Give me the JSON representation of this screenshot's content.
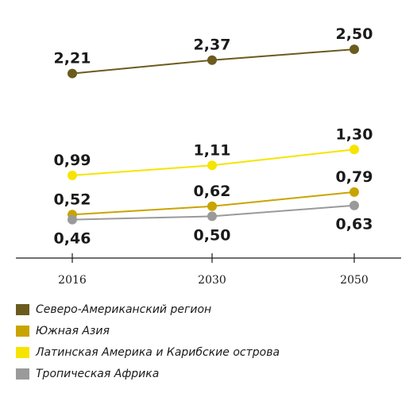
{
  "chart_data": {
    "type": "line",
    "x": [
      "2016",
      "2030",
      "2050"
    ],
    "series": [
      {
        "name": "Северо-Американский регион",
        "color": "#6b5b1e",
        "values": [
          2.21,
          2.37,
          2.5
        ],
        "labels": [
          "2,21",
          "2,37",
          "2,50"
        ],
        "label_pos": [
          "above",
          "above",
          "above"
        ]
      },
      {
        "name": "Южная Азия",
        "color": "#c9a400",
        "values": [
          0.52,
          0.62,
          0.79
        ],
        "labels": [
          "0,52",
          "0,62",
          "0,79"
        ],
        "label_pos": [
          "above",
          "above",
          "above"
        ]
      },
      {
        "name": "Латинская Америка и Карибские острова",
        "color": "#f6e400",
        "values": [
          0.99,
          1.11,
          1.3
        ],
        "labels": [
          "0,99",
          "1,11",
          "1,30"
        ],
        "label_pos": [
          "above",
          "above",
          "above"
        ]
      },
      {
        "name": "Тропическая Африка",
        "color": "#9a9a9a",
        "values": [
          0.46,
          0.5,
          0.63
        ],
        "labels": [
          "0,46",
          "0,50",
          "0,63"
        ],
        "label_pos": [
          "below",
          "below",
          "below"
        ]
      }
    ],
    "ylim": [
      0,
      2.9
    ],
    "grid": false,
    "legend_position": "bottom"
  }
}
